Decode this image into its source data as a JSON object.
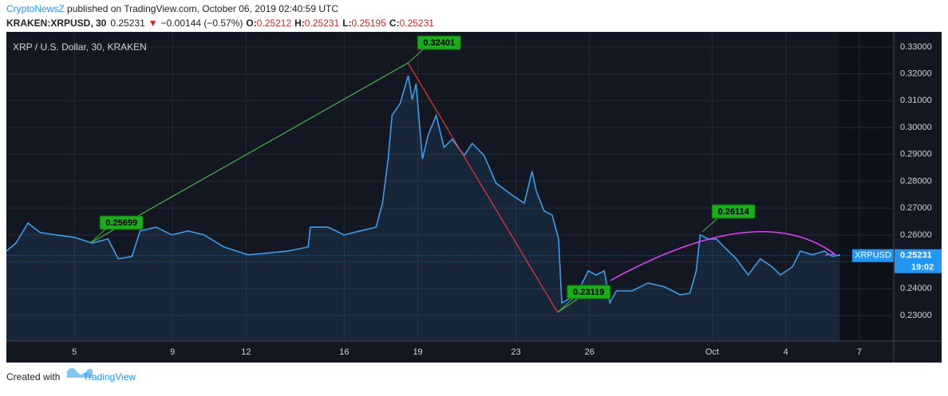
{
  "header": {
    "author": "CryptoNewsZ",
    "published": " published on TradingView.com, October 06, 2019 02:40:59 UTC",
    "symbol": "KRAKEN:XRPUSD, 30",
    "price": "0.25231",
    "arrow": "▼",
    "change": "−0.00144 (−0.57%)",
    "o_label": "O:",
    "o": "0.25212",
    "h_label": "H:",
    "h": "0.25231",
    "l_label": "L:",
    "l": "0.25195",
    "c_label": "C:",
    "c": "0.25231"
  },
  "footer": {
    "text": "Created with",
    "brand": "TradingView"
  },
  "chart_data": {
    "type": "line",
    "title": "XRP / U.S. Dollar, 30, KRAKEN",
    "x": [
      2.23,
      2.62,
      3.11,
      3.6,
      4.25,
      5,
      5.72,
      6.37,
      6.79,
      7.35,
      7.68,
      8.33,
      8.98,
      9.63,
      10.29,
      11.1,
      12.08,
      12.73,
      13.71,
      14.53,
      14.62,
      15.34,
      16,
      16.65,
      17.3,
      17.56,
      17.79,
      17.95,
      18.28,
      18.61,
      18.77,
      18.93,
      19.19,
      19.42,
      19.75,
      20.07,
      20.4,
      20.89,
      21.22,
      21.7,
      22.19,
      22.85,
      23.34,
      23.66,
      23.83,
      24.15,
      24.48,
      24.74,
      24.87,
      25,
      25.46,
      25.95,
      26.27,
      26.6,
      26.83,
      27.09,
      27.74,
      28.39,
      29.05,
      29.7,
      30.09,
      30.35,
      30.51,
      30.84,
      31.17,
      31.49,
      31.98,
      32.47,
      32.96,
      33.45,
      33.78,
      34.27,
      34.59,
      35.08,
      35.57,
      35.9,
      36.22
    ],
    "series": [
      {
        "name": "XRPUSD",
        "color": "#3d9be9",
        "values": [
          0.254,
          0.257,
          0.2644,
          0.2609,
          0.26,
          0.2591,
          0.257,
          0.2585,
          0.2511,
          0.252,
          0.2615,
          0.2629,
          0.26,
          0.2615,
          0.26,
          0.2555,
          0.2526,
          0.2531,
          0.254,
          0.2555,
          0.2629,
          0.2629,
          0.26,
          0.2615,
          0.2629,
          0.2718,
          0.2882,
          0.3045,
          0.3089,
          0.3193,
          0.3104,
          0.3163,
          0.2882,
          0.2971,
          0.3045,
          0.2926,
          0.2956,
          0.2896,
          0.2941,
          0.2896,
          0.2793,
          0.2748,
          0.2718,
          0.2837,
          0.2763,
          0.2689,
          0.2674,
          0.2585,
          0.2347,
          0.2353,
          0.2377,
          0.2466,
          0.2451,
          0.2466,
          0.2347,
          0.2392,
          0.2392,
          0.2421,
          0.2407,
          0.2377,
          0.2383,
          0.2466,
          0.26,
          0.2585,
          0.2585,
          0.2555,
          0.2511,
          0.2451,
          0.2511,
          0.2481,
          0.2451,
          0.2481,
          0.254,
          0.2526,
          0.254,
          0.252,
          0.2526
        ]
      }
    ],
    "xlim": [
      2.23,
      38.4
    ],
    "ylim": [
      0.2205,
      0.3356
    ],
    "xticks": [
      5,
      9,
      12,
      16,
      19,
      23,
      26,
      {
        "value": 31,
        "label": "Oct"
      },
      {
        "value": 34,
        "label": "4"
      },
      {
        "value": 37,
        "label": "7"
      }
    ],
    "yticks": [
      {
        "value": 0.23,
        "label": "0.23000"
      },
      {
        "value": 0.24,
        "label": "0.24000"
      },
      {
        "value": 0.25,
        "label": "0.25000"
      },
      {
        "value": 0.26,
        "label": "0.26000"
      },
      {
        "value": 0.27,
        "label": "0.27000"
      },
      {
        "value": 0.28,
        "label": "0.28000"
      },
      {
        "value": 0.29,
        "label": "0.29000"
      },
      {
        "value": 0.3,
        "label": "0.30000"
      },
      {
        "value": 0.31,
        "label": "0.31000"
      },
      {
        "value": 0.32,
        "label": "0.32000"
      },
      {
        "value": 0.33,
        "label": "0.33000"
      }
    ],
    "grid": true,
    "annotations": [
      {
        "x": 5.65,
        "value": 0.25699
      },
      {
        "x": 18.6,
        "value": 0.32401
      },
      {
        "x": 24.7,
        "value": 0.23119
      },
      {
        "x": 30.6,
        "value": 0.26114
      }
    ],
    "last": {
      "symbol": "XRPUSD",
      "value": 0.25231,
      "label": "0.25231",
      "time": "19:02"
    }
  }
}
